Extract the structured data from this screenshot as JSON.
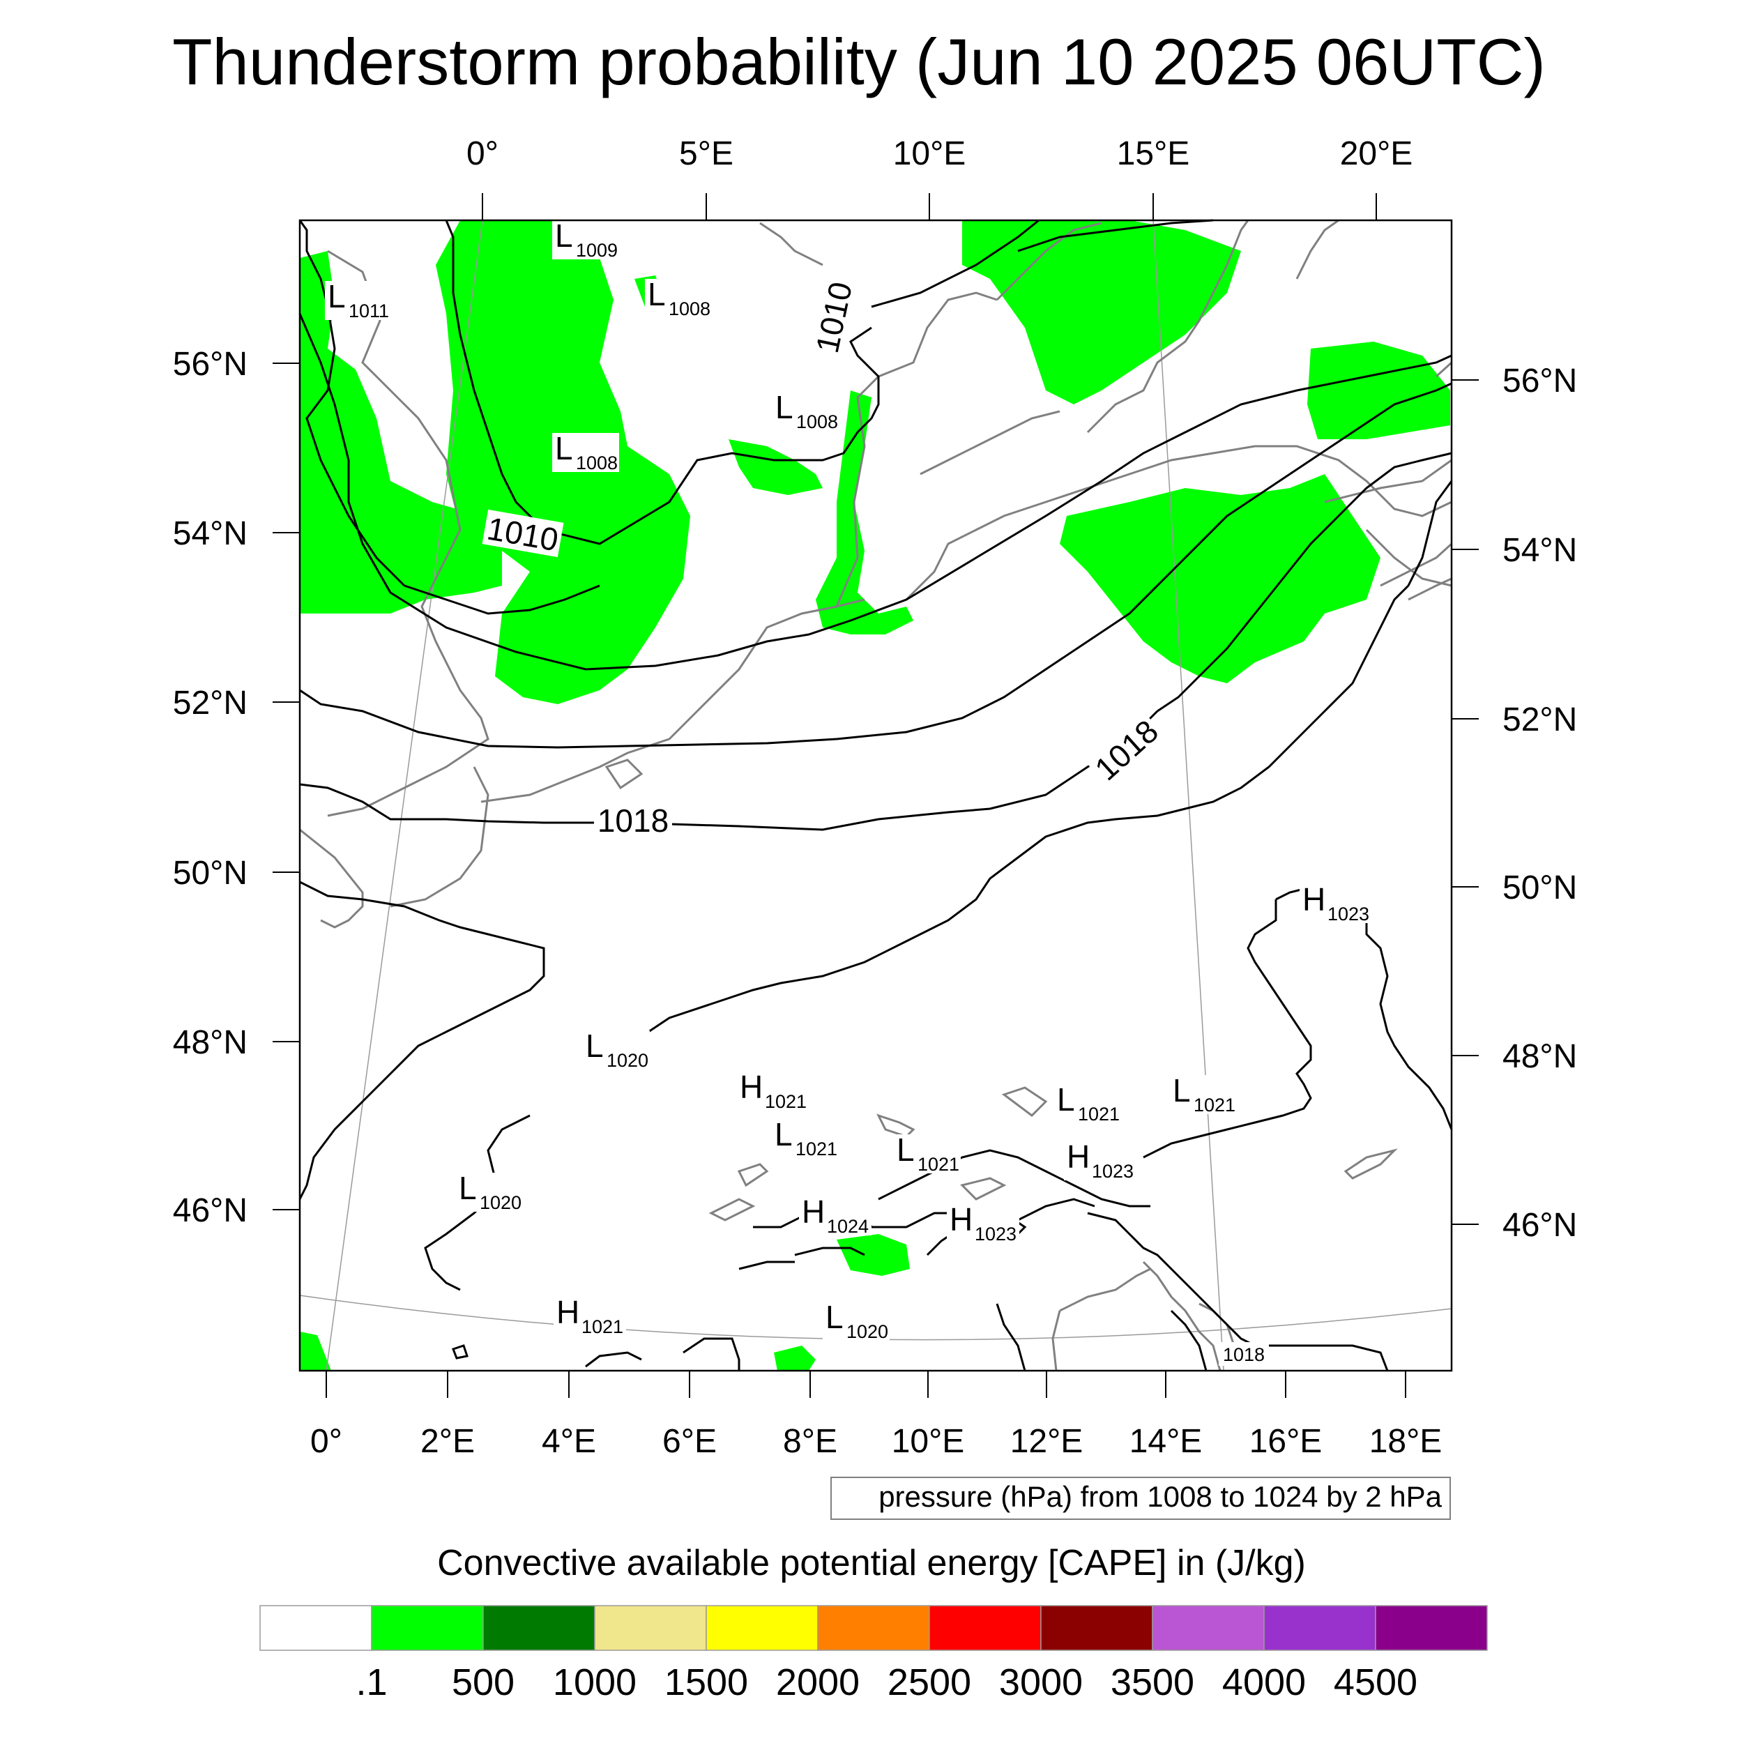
{
  "title": "Thunderstorm probability (Jun 10 2025 06UTC)",
  "top_lon_labels": [
    "0°",
    "5°E",
    "10°E",
    "15°E",
    "20°E"
  ],
  "bottom_lon_labels": [
    "0°",
    "2°E",
    "4°E",
    "6°E",
    "8°E",
    "10°E",
    "12°E",
    "14°E",
    "16°E",
    "18°E"
  ],
  "left_lat_labels": [
    "56°N",
    "54°N",
    "52°N",
    "50°N",
    "48°N",
    "46°N"
  ],
  "right_lat_labels": [
    "56°N",
    "54°N",
    "52°N",
    "50°N",
    "48°N",
    "46°N"
  ],
  "pressure_centers": [
    {
      "letter": "L",
      "value": "1009"
    },
    {
      "letter": "L",
      "value": "1011"
    },
    {
      "letter": "L",
      "value": "1008"
    },
    {
      "letter": "L",
      "value": "1008"
    },
    {
      "letter": "L",
      "value": "1008"
    },
    {
      "letter": "H",
      "value": "1023"
    },
    {
      "letter": "L",
      "value": "1020"
    },
    {
      "letter": "H",
      "value": "1021"
    },
    {
      "letter": "L",
      "value": "1021"
    },
    {
      "letter": "L",
      "value": "1021"
    },
    {
      "letter": "L",
      "value": "1021"
    },
    {
      "letter": "L",
      "value": "1021"
    },
    {
      "letter": "H",
      "value": "1023"
    },
    {
      "letter": "L",
      "value": "1020"
    },
    {
      "letter": "H",
      "value": "1024"
    },
    {
      "letter": "H",
      "value": "1023"
    },
    {
      "letter": "H",
      "value": "1021"
    },
    {
      "letter": "L",
      "value": "1020"
    }
  ],
  "isobar_labels": [
    "1010",
    "1010",
    "1018",
    "1018",
    "1018"
  ],
  "contour_note": "pressure (hPa) from 1008 to 1024 by 2 hPa",
  "colorbar": {
    "title": "Convective available potential energy [CAPE] in (J/kg)",
    "labels": [
      ".1",
      "500",
      "1000",
      "1500",
      "2000",
      "2500",
      "3000",
      "3500",
      "4000",
      "4500"
    ],
    "colors": [
      "#ffffff",
      "#00ff00",
      "#007a00",
      "#f0e68c",
      "#ffff00",
      "#ff8000",
      "#ff0000",
      "#8b0000",
      "#ba55d3",
      "#9932cc",
      "#8b008b"
    ]
  },
  "colors": {
    "cape_low": "#00ff00",
    "coastline": "#808080",
    "isobar": "#000000",
    "graticule": "#9a9a9a"
  }
}
